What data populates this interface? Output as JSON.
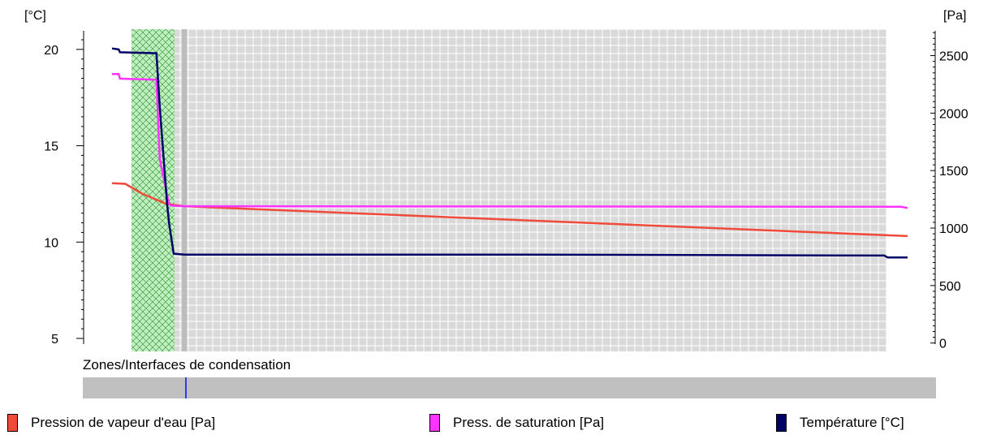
{
  "chart_data": {
    "type": "line",
    "left_axis": {
      "label": "[°C]",
      "ticks": [
        "20",
        "15",
        "10",
        "5"
      ],
      "tick_values": [
        20,
        15,
        10,
        5
      ],
      "range": [
        4.2,
        21.3
      ]
    },
    "right_axis": {
      "label": "[Pa]",
      "ticks": [
        "2500",
        "2000",
        "1500",
        "1000",
        "500",
        "0"
      ],
      "tick_values": [
        2500,
        2000,
        1500,
        1000,
        500,
        0
      ],
      "range": [
        -94,
        2772
      ]
    },
    "grid": true,
    "colors": {
      "hatched_layer": "#bff0bf",
      "plot_background": "#d9d9d9",
      "grid": "#ffffff"
    },
    "series": [
      {
        "name": "Pression de vapeur d'eau [Pa]",
        "axis": "right",
        "color": "#f04a3a",
        "x": [
          0,
          2,
          4.5,
          8.2,
          10.9,
          120
        ],
        "values": [
          1390,
          1385,
          1300,
          1210,
          1190,
          930
        ]
      },
      {
        "name": "Press. de saturation [Pa]",
        "axis": "right",
        "color": "#ff33ff",
        "x": [
          0,
          1,
          1.2,
          6.7,
          7.2,
          8.6,
          9,
          10.9,
          119,
          120
        ],
        "values": [
          2340,
          2340,
          2300,
          2290,
          1600,
          1210,
          1195,
          1190,
          1185,
          1175
        ]
      },
      {
        "name": "Température [°C]",
        "axis": "left",
        "color": "#000066",
        "x": [
          0,
          1,
          1.2,
          6.7,
          7.2,
          8.3,
          8.6,
          9.3,
          10.9,
          62,
          116.5,
          117,
          120
        ],
        "values": [
          20.05,
          20.0,
          19.85,
          19.8,
          17.0,
          12.0,
          11.0,
          9.4,
          9.35,
          9.35,
          9.3,
          9.2,
          9.2
        ]
      }
    ],
    "condensation_zones": {
      "label": "Zones/Interfaces de condensation"
    }
  },
  "legend": [
    {
      "label": "Pression de vapeur d'eau [Pa]",
      "color": "#f04a3a"
    },
    {
      "label": "Press. de saturation [Pa]",
      "color": "#ff33ff"
    },
    {
      "label": "Température [°C]",
      "color": "#000066"
    }
  ]
}
